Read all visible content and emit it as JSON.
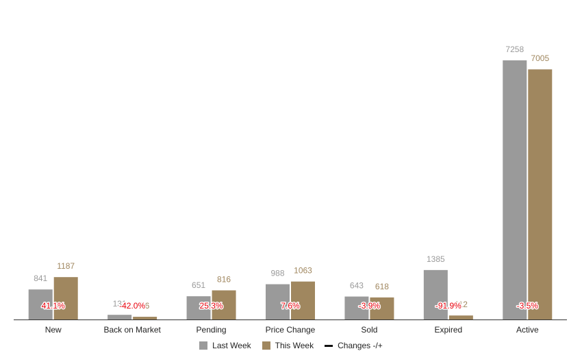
{
  "chart_data": {
    "type": "bar",
    "categories": [
      "New",
      "Back on Market",
      "Pending",
      "Price Change",
      "Sold",
      "Expired",
      "Active"
    ],
    "series": [
      {
        "name": "Last Week",
        "values": [
          841,
          131,
          651,
          988,
          643,
          1385,
          7258
        ],
        "color": "#9a9a9a"
      },
      {
        "name": "This Week",
        "values": [
          1187,
          76,
          816,
          1063,
          618,
          112,
          7005
        ],
        "color": "#a0875f"
      }
    ],
    "changes": {
      "name": "Changes -/+",
      "labels": [
        "41.1%",
        "-42.0%",
        "25.3%",
        "7.6%",
        "-3.9%",
        "-91.9%",
        "-3.5%"
      ]
    },
    "ylim": [
      0,
      7700
    ],
    "grid": false,
    "legend_position": "bottom",
    "axis_color": "#333333",
    "change_label_color": "#e8000b"
  },
  "legend": {
    "last_week": "Last Week",
    "this_week": "This Week",
    "changes": "Changes -/+"
  }
}
